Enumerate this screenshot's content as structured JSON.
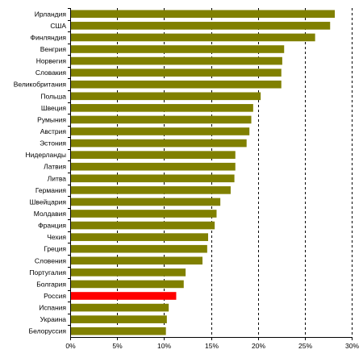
{
  "chart_data": {
    "type": "bar",
    "orientation": "horizontal",
    "title": "",
    "xlabel": "",
    "ylabel": "",
    "xlim": [
      0,
      30
    ],
    "x_tick_labels": [
      "0%",
      "5%",
      "10%",
      "15%",
      "20%",
      "25%",
      "30%"
    ],
    "x_tick_values": [
      0,
      5,
      10,
      15,
      20,
      25,
      30
    ],
    "grid": "vertical dashed lines",
    "legend": "none",
    "categories": [
      "Ирландия",
      "США",
      "Финляндия",
      "Венгрия",
      "Норвегия",
      "Словакия",
      "Великобритания",
      "Польша",
      "Швеция",
      "Румыния",
      "Австрия",
      "Эстония",
      "Нидерланды",
      "Латвия",
      "Литва",
      "Германия",
      "Швейцария",
      "Молдавия",
      "Франция",
      "Чехия",
      "Греция",
      "Словения",
      "Португалия",
      "Болгария",
      "Россия",
      "Испания",
      "Украина",
      "Белоруссия"
    ],
    "values": [
      28.2,
      27.7,
      26.1,
      22.8,
      22.6,
      22.5,
      22.5,
      20.3,
      19.5,
      19.3,
      19.1,
      18.8,
      17.6,
      17.6,
      17.5,
      17.1,
      16.0,
      15.6,
      15.4,
      14.7,
      14.6,
      14.1,
      12.3,
      12.1,
      11.3,
      10.5,
      10.3,
      10.2
    ],
    "highlight_category": "Россия",
    "colors": {
      "bar": "#808000",
      "highlight": "#ff0000",
      "grid": "#000000"
    }
  }
}
